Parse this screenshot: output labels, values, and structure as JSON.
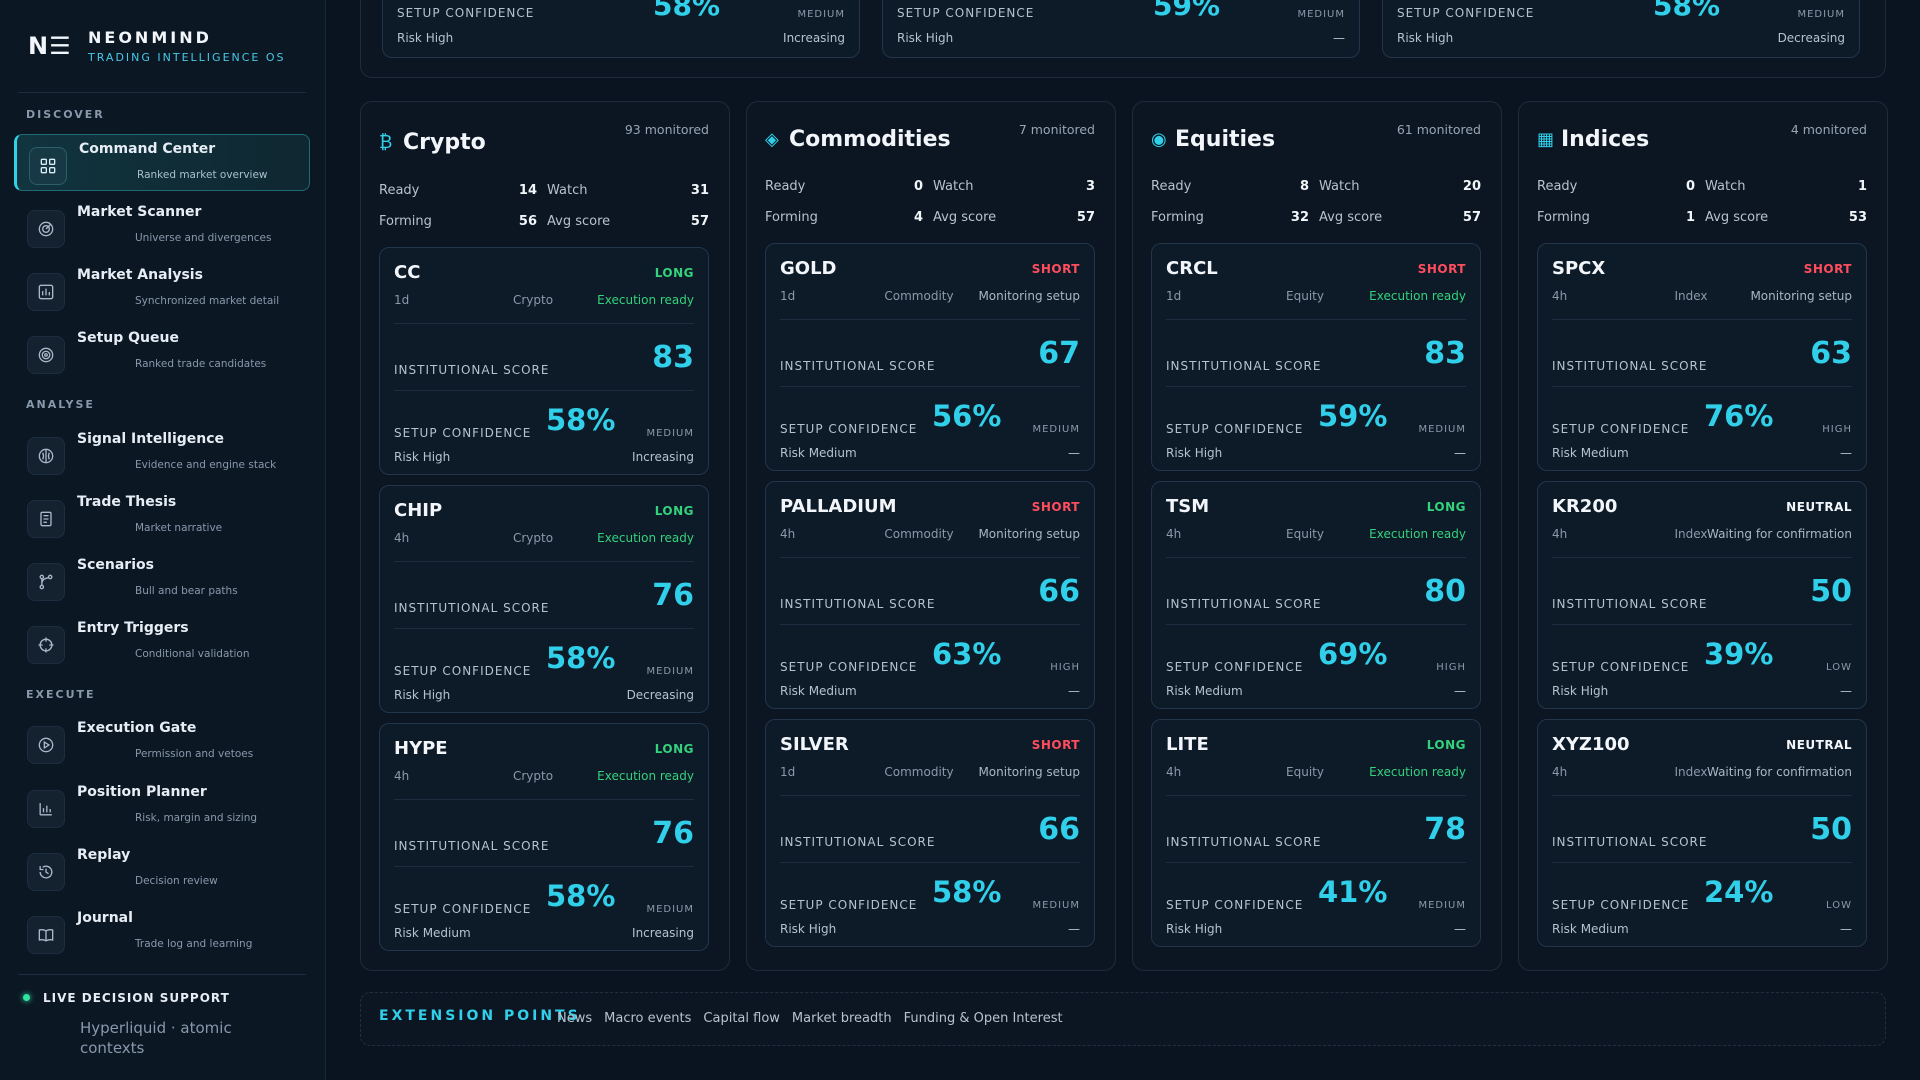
{
  "brand": {
    "logo": "N☰",
    "name": "NEONMIND",
    "subtitle": "TRADING INTELLIGENCE OS"
  },
  "sidebar": {
    "sections": {
      "discover": "DISCOVER",
      "analyse": "ANALYSE",
      "execute": "EXECUTE"
    },
    "items": [
      {
        "title": "Command Center",
        "sub": "Ranked market overview",
        "icon": "grid-icon",
        "active": true
      },
      {
        "title": "Market Scanner",
        "sub": "Universe and divergences",
        "icon": "radar-icon"
      },
      {
        "title": "Market Analysis",
        "sub": "Synchronized market detail",
        "icon": "chart-icon"
      },
      {
        "title": "Setup Queue",
        "sub": "Ranked trade candidates",
        "icon": "target-icon"
      },
      {
        "title": "Signal Intelligence",
        "sub": "Evidence and engine stack",
        "icon": "brain-icon"
      },
      {
        "title": "Trade Thesis",
        "sub": "Market narrative",
        "icon": "document-icon"
      },
      {
        "title": "Scenarios",
        "sub": "Bull and bear paths",
        "icon": "branch-icon"
      },
      {
        "title": "Entry Triggers",
        "sub": "Conditional validation",
        "icon": "crosshair-icon"
      },
      {
        "title": "Execution Gate",
        "sub": "Permission and vetoes",
        "icon": "play-icon"
      },
      {
        "title": "Position Planner",
        "sub": "Risk, margin and sizing",
        "icon": "bar-chart-icon"
      },
      {
        "title": "Replay",
        "sub": "Decision review",
        "icon": "history-icon"
      },
      {
        "title": "Journal",
        "sub": "Trade log and learning",
        "icon": "book-icon"
      }
    ],
    "live": {
      "label": "LIVE DECISION SUPPORT",
      "sub": "Hyperliquid · atomic contexts"
    }
  },
  "top_cards": [
    {
      "conf_label": "SETUP CONFIDENCE",
      "conf": "58%",
      "level": "MEDIUM",
      "risk": "Risk High",
      "trend": "Increasing"
    },
    {
      "conf_label": "SETUP CONFIDENCE",
      "conf": "59%",
      "level": "MEDIUM",
      "risk": "Risk High",
      "trend": "—"
    },
    {
      "conf_label": "SETUP CONFIDENCE",
      "conf": "58%",
      "level": "MEDIUM",
      "risk": "Risk High",
      "trend": "Decreasing"
    }
  ],
  "labels": {
    "ready": "Ready",
    "watch": "Watch",
    "forming": "Forming",
    "avg_score": "Avg score",
    "institutional_score": "INSTITUTIONAL SCORE",
    "setup_confidence": "SETUP CONFIDENCE"
  },
  "columns": [
    {
      "icon": "₿",
      "icon_name": "bitcoin-icon",
      "title": "Crypto",
      "monitored": "93 monitored",
      "ready": "14",
      "watch": "31",
      "forming": "56",
      "avg": "57",
      "cards": [
        {
          "sym": "CC",
          "dir": "LONG",
          "dir_class": "long",
          "tf": "1d",
          "cls": "Crypto",
          "status": "Execution ready",
          "status_class": "ready",
          "score": "83",
          "conf": "58%",
          "level": "MEDIUM",
          "risk": "Risk High",
          "trend": "Increasing"
        },
        {
          "sym": "CHIP",
          "dir": "LONG",
          "dir_class": "long",
          "tf": "4h",
          "cls": "Crypto",
          "status": "Execution ready",
          "status_class": "ready",
          "score": "76",
          "conf": "58%",
          "level": "MEDIUM",
          "risk": "Risk High",
          "trend": "Decreasing"
        },
        {
          "sym": "HYPE",
          "dir": "LONG",
          "dir_class": "long",
          "tf": "4h",
          "cls": "Crypto",
          "status": "Execution ready",
          "status_class": "ready",
          "score": "76",
          "conf": "58%",
          "level": "MEDIUM",
          "risk": "Risk Medium",
          "trend": "Increasing"
        }
      ]
    },
    {
      "icon": "◈",
      "icon_name": "diamond-icon",
      "title": "Commodities",
      "monitored": "7 monitored",
      "ready": "0",
      "watch": "3",
      "forming": "4",
      "avg": "57",
      "cards": [
        {
          "sym": "GOLD",
          "dir": "SHORT",
          "dir_class": "short",
          "tf": "1d",
          "cls": "Commodity",
          "status": "Monitoring setup",
          "status_class": "monitor",
          "score": "67",
          "conf": "56%",
          "level": "MEDIUM",
          "risk": "Risk Medium",
          "trend": "—"
        },
        {
          "sym": "PALLADIUM",
          "dir": "SHORT",
          "dir_class": "short",
          "tf": "4h",
          "cls": "Commodity",
          "status": "Monitoring setup",
          "status_class": "monitor",
          "score": "66",
          "conf": "63%",
          "level": "HIGH",
          "risk": "Risk Medium",
          "trend": "—"
        },
        {
          "sym": "SILVER",
          "dir": "SHORT",
          "dir_class": "short",
          "tf": "1d",
          "cls": "Commodity",
          "status": "Monitoring setup",
          "status_class": "monitor",
          "score": "66",
          "conf": "58%",
          "level": "MEDIUM",
          "risk": "Risk High",
          "trend": "—"
        }
      ]
    },
    {
      "icon": "◉",
      "icon_name": "target-dot-icon",
      "title": "Equities",
      "monitored": "61 monitored",
      "ready": "8",
      "watch": "20",
      "forming": "32",
      "avg": "57",
      "cards": [
        {
          "sym": "CRCL",
          "dir": "SHORT",
          "dir_class": "short",
          "tf": "1d",
          "cls": "Equity",
          "status": "Execution ready",
          "status_class": "ready",
          "score": "83",
          "conf": "59%",
          "level": "MEDIUM",
          "risk": "Risk High",
          "trend": "—"
        },
        {
          "sym": "TSM",
          "dir": "LONG",
          "dir_class": "long",
          "tf": "4h",
          "cls": "Equity",
          "status": "Execution ready",
          "status_class": "ready",
          "score": "80",
          "conf": "69%",
          "level": "HIGH",
          "risk": "Risk Medium",
          "trend": "—"
        },
        {
          "sym": "LITE",
          "dir": "LONG",
          "dir_class": "long",
          "tf": "4h",
          "cls": "Equity",
          "status": "Execution ready",
          "status_class": "ready",
          "score": "78",
          "conf": "41%",
          "level": "MEDIUM",
          "risk": "Risk High",
          "trend": "—"
        }
      ]
    },
    {
      "icon": "▦",
      "icon_name": "grid-chart-icon",
      "title": "Indices",
      "monitored": "4 monitored",
      "ready": "0",
      "watch": "1",
      "forming": "1",
      "avg": "53",
      "cards": [
        {
          "sym": "SPCX",
          "dir": "SHORT",
          "dir_class": "short",
          "tf": "4h",
          "cls": "Index",
          "status": "Monitoring setup",
          "status_class": "monitor",
          "score": "63",
          "conf": "76%",
          "level": "HIGH",
          "risk": "Risk Medium",
          "trend": "—"
        },
        {
          "sym": "KR200",
          "dir": "NEUTRAL",
          "dir_class": "neutral",
          "tf": "4h",
          "cls": "Index",
          "status": "Waiting for confirmation",
          "status_class": "monitor",
          "score": "50",
          "conf": "39%",
          "level": "LOW",
          "risk": "Risk High",
          "trend": "—"
        },
        {
          "sym": "XYZ100",
          "dir": "NEUTRAL",
          "dir_class": "neutral",
          "tf": "4h",
          "cls": "Index",
          "status": "Waiting for confirmation",
          "status_class": "monitor",
          "score": "50",
          "conf": "24%",
          "level": "LOW",
          "risk": "Risk Medium",
          "trend": "—"
        }
      ]
    }
  ],
  "extension": {
    "title": "EXTENSION POINTS",
    "links": [
      "News",
      "Macro events",
      "Capital flow",
      "Market breadth",
      "Funding & Open Interest"
    ]
  },
  "colors": {
    "accent": "#31d0ea",
    "long": "#34d27c",
    "short": "#ff4d5e",
    "background": "#0a1420"
  }
}
